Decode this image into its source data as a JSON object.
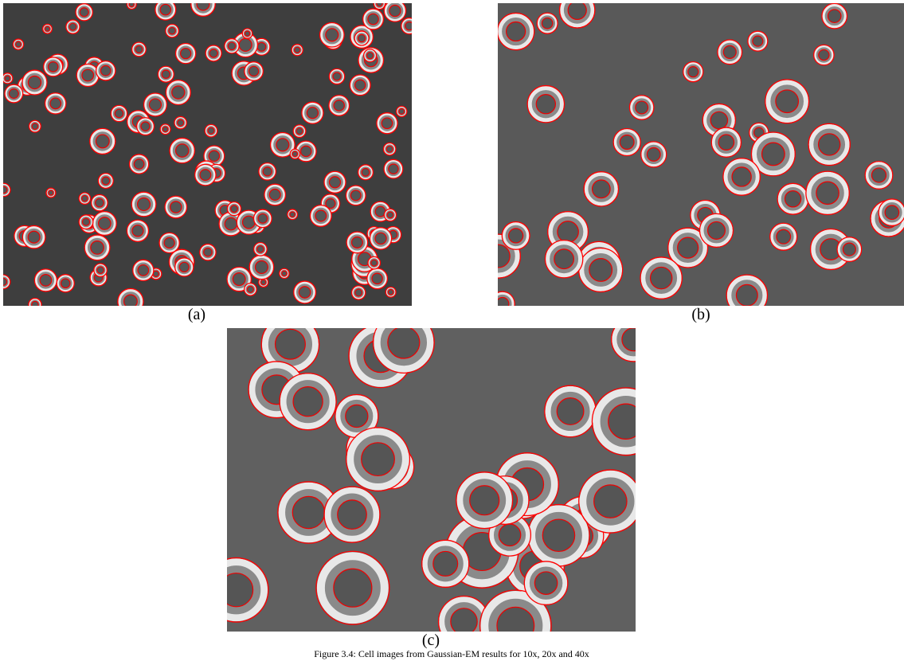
{
  "figure": {
    "panels": [
      {
        "label": "(a)"
      },
      {
        "label": "(b)"
      },
      {
        "label": "(c)"
      }
    ],
    "caption": "Figure 3.4: Cell images from Gaussian-EM results for 10x, 20x and 40x"
  }
}
